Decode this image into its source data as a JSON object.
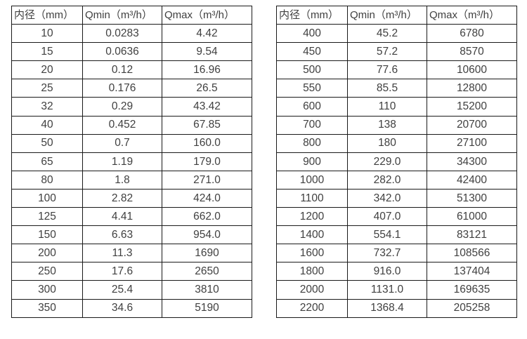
{
  "colors": {
    "border": "#1a1a1a",
    "text": "#404040",
    "background": "#ffffff"
  },
  "header": {
    "cols": [
      "内径（mm）",
      "Qmin（m³/h）",
      "Qmax（m³/h）"
    ]
  },
  "tables": [
    {
      "rows": [
        [
          "10",
          "0.0283",
          "4.42"
        ],
        [
          "15",
          "0.0636",
          "9.54"
        ],
        [
          "20",
          "0.12",
          "16.96"
        ],
        [
          "25",
          "0.176",
          "26.5"
        ],
        [
          "32",
          "0.29",
          "43.42"
        ],
        [
          "40",
          "0.452",
          "67.85"
        ],
        [
          "50",
          "0.7",
          "160.0"
        ],
        [
          "65",
          "1.19",
          "179.0"
        ],
        [
          "80",
          "1.8",
          "271.0"
        ],
        [
          "100",
          "2.82",
          "424.0"
        ],
        [
          "125",
          "4.41",
          "662.0"
        ],
        [
          "150",
          "6.63",
          "954.0"
        ],
        [
          "200",
          "11.3",
          "1690"
        ],
        [
          "250",
          "17.6",
          "2650"
        ],
        [
          "300",
          "25.4",
          "3810"
        ],
        [
          "350",
          "34.6",
          "5190"
        ]
      ]
    },
    {
      "rows": [
        [
          "400",
          "45.2",
          "6780"
        ],
        [
          "450",
          "57.2",
          "8570"
        ],
        [
          "500",
          "77.6",
          "10600"
        ],
        [
          "550",
          "85.5",
          "12800"
        ],
        [
          "600",
          "110",
          "15200"
        ],
        [
          "700",
          "138",
          "20700"
        ],
        [
          "800",
          "180",
          "27100"
        ],
        [
          "900",
          "229.0",
          "34300"
        ],
        [
          "1000",
          "282.0",
          "42400"
        ],
        [
          "1100",
          "342.0",
          "51300"
        ],
        [
          "1200",
          "407.0",
          "61000"
        ],
        [
          "1400",
          "554.1",
          "83121"
        ],
        [
          "1600",
          "732.7",
          "108566"
        ],
        [
          "1800",
          "916.0",
          "137404"
        ],
        [
          "2000",
          "1131.0",
          "169635"
        ],
        [
          "2200",
          "1368.4",
          "205258"
        ]
      ]
    }
  ]
}
